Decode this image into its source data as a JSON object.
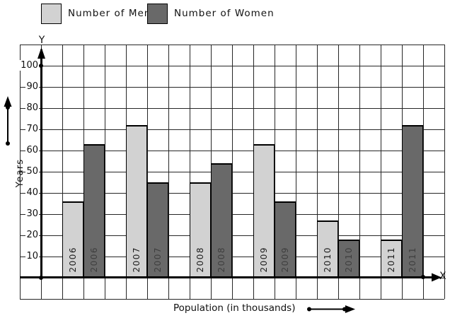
{
  "legend": [
    {
      "label": "Number of Men",
      "color": "#d2d2d2"
    },
    {
      "label": "Number of Women",
      "color": "#696969"
    }
  ],
  "axes": {
    "y_letter": "Y",
    "x_letter": "X",
    "y_title": "Years",
    "x_title": "Population (in thousands)"
  },
  "colors": {
    "men_bar": "#d2d2d2",
    "women_bar": "#696969",
    "grid_line": "#262626",
    "axis": "#000000"
  },
  "chart_data": {
    "type": "bar",
    "categories": [
      "2006",
      "2007",
      "2008",
      "2009",
      "2010",
      "2011"
    ],
    "series": [
      {
        "name": "Number of Men",
        "color": "#d2d2d2",
        "values": [
          36,
          72,
          45,
          63,
          27,
          18
        ]
      },
      {
        "name": "Number of Women",
        "color": "#696969",
        "values": [
          63,
          45,
          54,
          36,
          18,
          72
        ]
      }
    ],
    "title": "",
    "xlabel": "Population (in thousands)",
    "ylabel": "Years",
    "ylim": [
      0,
      100
    ],
    "y_ticks": [
      10,
      20,
      30,
      40,
      50,
      60,
      70,
      80,
      90,
      100
    ],
    "grid": true,
    "legend_position": "top"
  }
}
